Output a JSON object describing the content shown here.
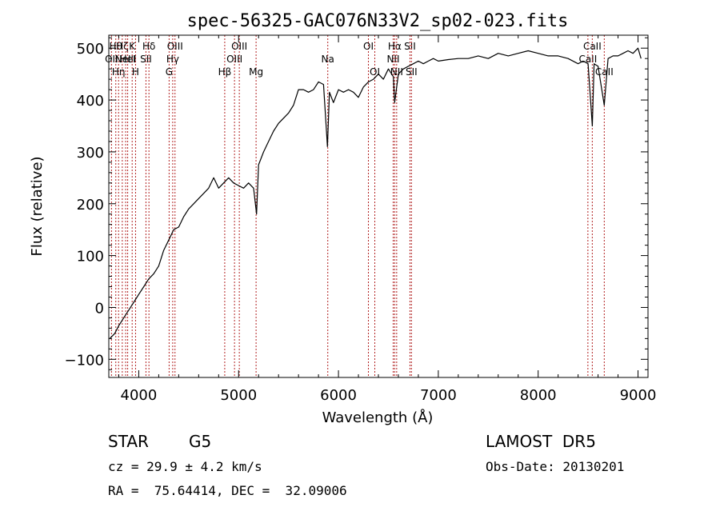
{
  "chart_data": {
    "type": "line",
    "title": "spec-56325-GAC076N33V2_sp02-023.fits",
    "xlabel": "Wavelength (Å)",
    "ylabel": "Flux (relative)",
    "xlim": [
      3700,
      9100
    ],
    "ylim": [
      -135,
      525
    ],
    "xticks": [
      4000,
      5000,
      6000,
      7000,
      8000,
      9000
    ],
    "yticks": [
      -100,
      0,
      100,
      200,
      300,
      400,
      500
    ],
    "grid": false,
    "line_color": "#000000",
    "marker_color": "#b22222",
    "series": [
      {
        "x": [
          3710,
          3760,
          3800,
          3850,
          3900,
          3950,
          4000,
          4050,
          4100,
          4150,
          4200,
          4250,
          4300,
          4350,
          4400,
          4450,
          4500,
          4550,
          4600,
          4650,
          4700,
          4750,
          4800,
          4850,
          4900,
          4950,
          5000,
          5050,
          5100,
          5150,
          5180,
          5200,
          5250,
          5300,
          5350,
          5400,
          5450,
          5500,
          5550,
          5600,
          5650,
          5700,
          5750,
          5800,
          5850,
          5890,
          5910,
          5950,
          6000,
          6050,
          6100,
          6150,
          6200,
          6250,
          6300,
          6350,
          6400,
          6450,
          6500,
          6550,
          6563,
          6600,
          6650,
          6700,
          6750,
          6800,
          6850,
          6900,
          6950,
          7000,
          7100,
          7200,
          7300,
          7400,
          7500,
          7600,
          7700,
          7800,
          7900,
          8000,
          8100,
          8200,
          8300,
          8400,
          8450,
          8500,
          8542,
          8560,
          8600,
          8662,
          8700,
          8750,
          8800,
          8850,
          8900,
          8950,
          9000,
          9030
        ],
        "y": [
          -60,
          -50,
          -35,
          -20,
          -5,
          10,
          25,
          40,
          55,
          65,
          80,
          110,
          130,
          150,
          155,
          175,
          190,
          200,
          210,
          220,
          230,
          250,
          230,
          240,
          250,
          240,
          235,
          230,
          240,
          230,
          180,
          275,
          300,
          320,
          340,
          355,
          365,
          375,
          390,
          420,
          420,
          415,
          420,
          435,
          430,
          310,
          415,
          395,
          420,
          415,
          420,
          415,
          405,
          425,
          435,
          440,
          450,
          440,
          460,
          445,
          395,
          450,
          460,
          465,
          470,
          475,
          470,
          475,
          480,
          475,
          478,
          480,
          480,
          485,
          480,
          490,
          485,
          490,
          495,
          490,
          485,
          485,
          480,
          470,
          475,
          470,
          350,
          470,
          465,
          390,
          480,
          485,
          485,
          490,
          495,
          490,
          500,
          480
        ]
      }
    ],
    "line_markers": [
      {
        "x": 3727,
        "label": "OII",
        "row": 1
      },
      {
        "x": 3770,
        "label": "Hθ",
        "row": 0
      },
      {
        "x": 3798,
        "label": "Hη",
        "row": 2
      },
      {
        "x": 3835,
        "label": "Hζ",
        "row": 0
      },
      {
        "x": 3869,
        "label": "NeIII",
        "row": 1
      },
      {
        "x": 3889,
        "label": "HeI",
        "row": 1
      },
      {
        "x": 3934,
        "label": "K",
        "row": 0
      },
      {
        "x": 3968,
        "label": "H",
        "row": 2
      },
      {
        "x": 4072,
        "label": "SII",
        "row": 1
      },
      {
        "x": 4102,
        "label": "Hδ",
        "row": 0
      },
      {
        "x": 4304,
        "label": "G",
        "row": 2
      },
      {
        "x": 4340,
        "label": "Hγ",
        "row": 1
      },
      {
        "x": 4363,
        "label": "OIII",
        "row": 0
      },
      {
        "x": 4861,
        "label": "Hβ",
        "row": 2
      },
      {
        "x": 4959,
        "label": "OIII",
        "row": 1
      },
      {
        "x": 5007,
        "label": "OIII",
        "row": 0
      },
      {
        "x": 5175,
        "label": "Mg",
        "row": 2
      },
      {
        "x": 5893,
        "label": "Na",
        "row": 1
      },
      {
        "x": 6300,
        "label": "OI",
        "row": 0
      },
      {
        "x": 6364,
        "label": "OI",
        "row": 2
      },
      {
        "x": 6548,
        "label": "NII",
        "row": 1
      },
      {
        "x": 6563,
        "label": "Hα",
        "row": 0
      },
      {
        "x": 6583,
        "label": "NII",
        "row": 2
      },
      {
        "x": 6716,
        "label": "SII",
        "row": 0
      },
      {
        "x": 6731,
        "label": "SII",
        "row": 2
      },
      {
        "x": 8498,
        "label": "CaII",
        "row": 1
      },
      {
        "x": 8542,
        "label": "CaII",
        "row": 0
      },
      {
        "x": 8662,
        "label": "CaII",
        "row": 2
      }
    ]
  },
  "info": {
    "object_type": "STAR",
    "subclass": "G5",
    "survey": "LAMOST  DR5",
    "redshift_line": "cz = 29.9 ± 4.2 km/s",
    "obs_date": "Obs-Date: 20130201",
    "coords": "RA =  75.64414, DEC =  32.09006"
  }
}
